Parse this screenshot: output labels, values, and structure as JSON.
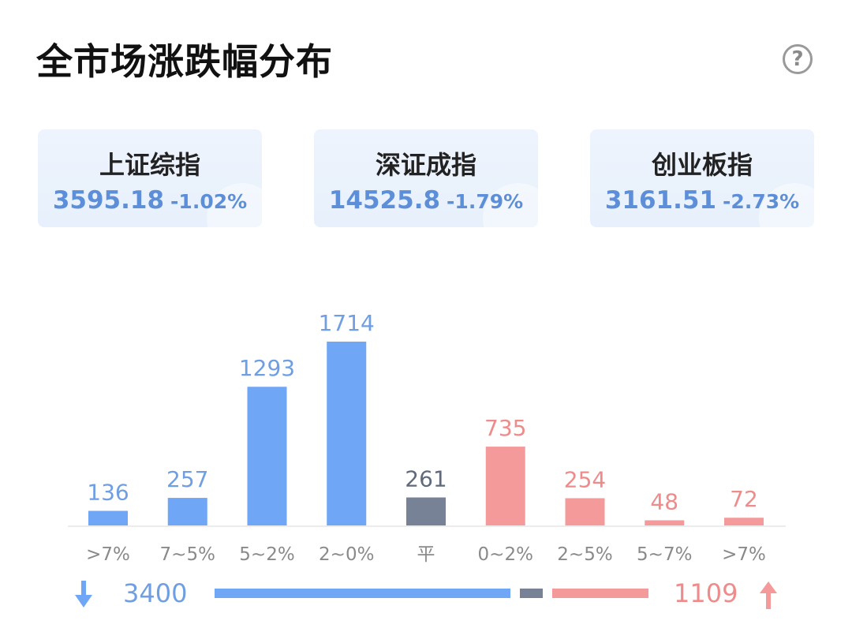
{
  "title": "全市场涨跌幅分布",
  "help_icon": "help-circle-icon",
  "help_glyph": "?",
  "indices": [
    {
      "name": "上证综指",
      "value": "3595.18",
      "change": "-1.02%"
    },
    {
      "name": "深证成指",
      "value": "14525.8",
      "change": "-1.79%"
    },
    {
      "name": "创业板指",
      "value": "3161.51",
      "change": "-2.73%"
    }
  ],
  "colors": {
    "fall": "#6fa6f5",
    "flat": "#778297",
    "rise": "#f59a9a",
    "fall_text": "#6f9fe2",
    "flat_text": "#606a7c",
    "rise_text": "#ee8b8b"
  },
  "chart_data": {
    "type": "bar",
    "categories": [
      ">7%",
      "7~5%",
      "5~2%",
      "2~0%",
      "平",
      "0~2%",
      "2~5%",
      "5~7%",
      ">7%"
    ],
    "values": [
      136,
      257,
      1293,
      1714,
      261,
      735,
      254,
      48,
      72
    ],
    "groups": [
      "fall",
      "fall",
      "fall",
      "fall",
      "flat",
      "rise",
      "rise",
      "rise",
      "rise"
    ]
  },
  "summary": {
    "down_total": "3400",
    "up_total": "1109",
    "flat_total": 261,
    "down_icon": "arrow-down-icon",
    "up_icon": "arrow-up-icon"
  }
}
